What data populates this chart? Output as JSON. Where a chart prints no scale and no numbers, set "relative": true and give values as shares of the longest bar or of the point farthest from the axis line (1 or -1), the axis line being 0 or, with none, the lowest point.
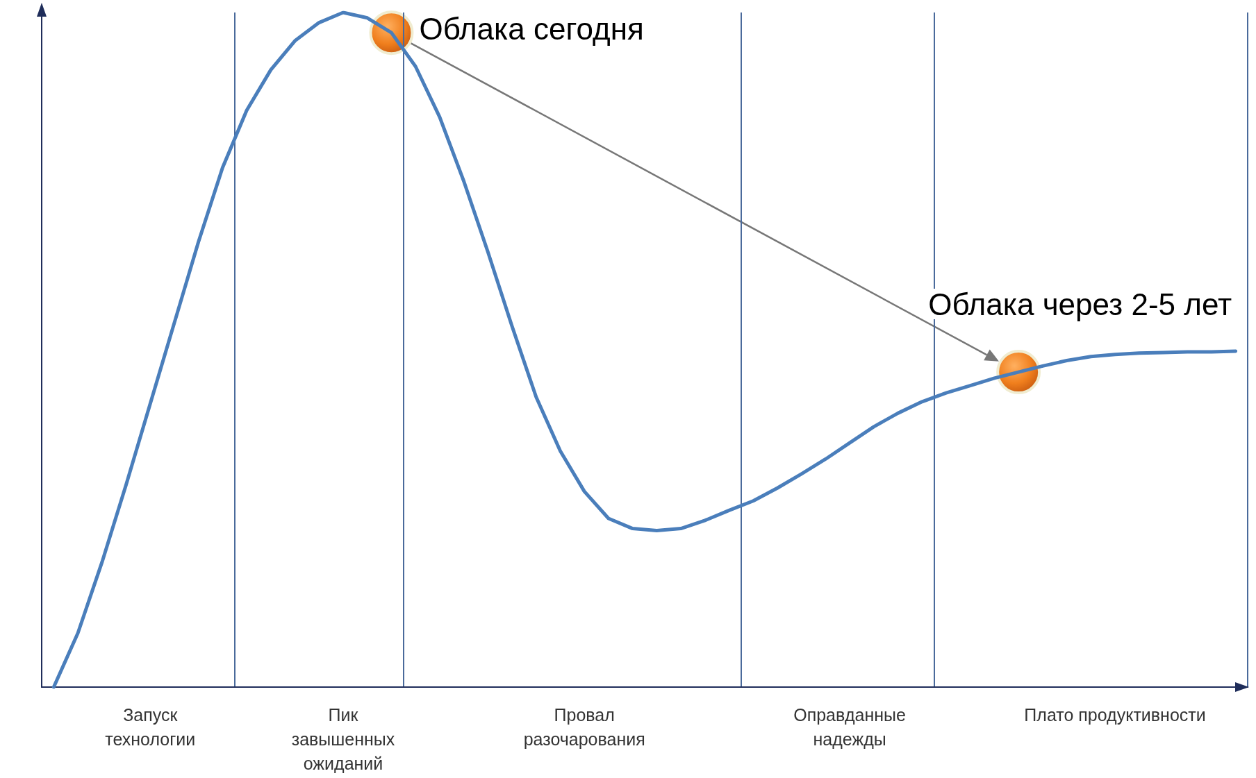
{
  "chart_data": {
    "type": "line",
    "relative": true,
    "grid": "x",
    "marker": "none",
    "line_style": "solid",
    "categories": [
      null,
      null,
      null,
      null,
      "Запуск\nтехнологии",
      null,
      null,
      null,
      null,
      null,
      null,
      null,
      "Пик\nзавышенных\nожиданий",
      null,
      null,
      null,
      null,
      null,
      null,
      null,
      null,
      null,
      "Провал\nразочарования",
      null,
      null,
      null,
      null,
      null,
      null,
      null,
      null,
      null,
      null,
      "Оправданные\nнадежды",
      null,
      null,
      null,
      null,
      null,
      null,
      null,
      null,
      null,
      null,
      "Плато продуктивности",
      null,
      null,
      null,
      null,
      null
    ],
    "series": [
      {
        "color": "#4a7ebb",
        "values": [
          0.0,
          0.08,
          0.185,
          0.3,
          0.42,
          0.54,
          0.66,
          0.77,
          0.855,
          0.915,
          0.958,
          0.985,
          1.0,
          0.992,
          0.97,
          0.92,
          0.845,
          0.75,
          0.645,
          0.535,
          0.43,
          0.35,
          0.29,
          0.25,
          0.235,
          0.232,
          0.235,
          0.247,
          0.262,
          0.276,
          0.295,
          0.316,
          0.338,
          0.362,
          0.386,
          0.406,
          0.423,
          0.436,
          0.447,
          0.458,
          0.467,
          0.476,
          0.484,
          0.49,
          0.493,
          0.495,
          0.496,
          0.497,
          0.497,
          0.498
        ]
      }
    ],
    "annotations": [
      "Облака сегодня",
      "Облака через 2-5 лет"
    ]
  }
}
